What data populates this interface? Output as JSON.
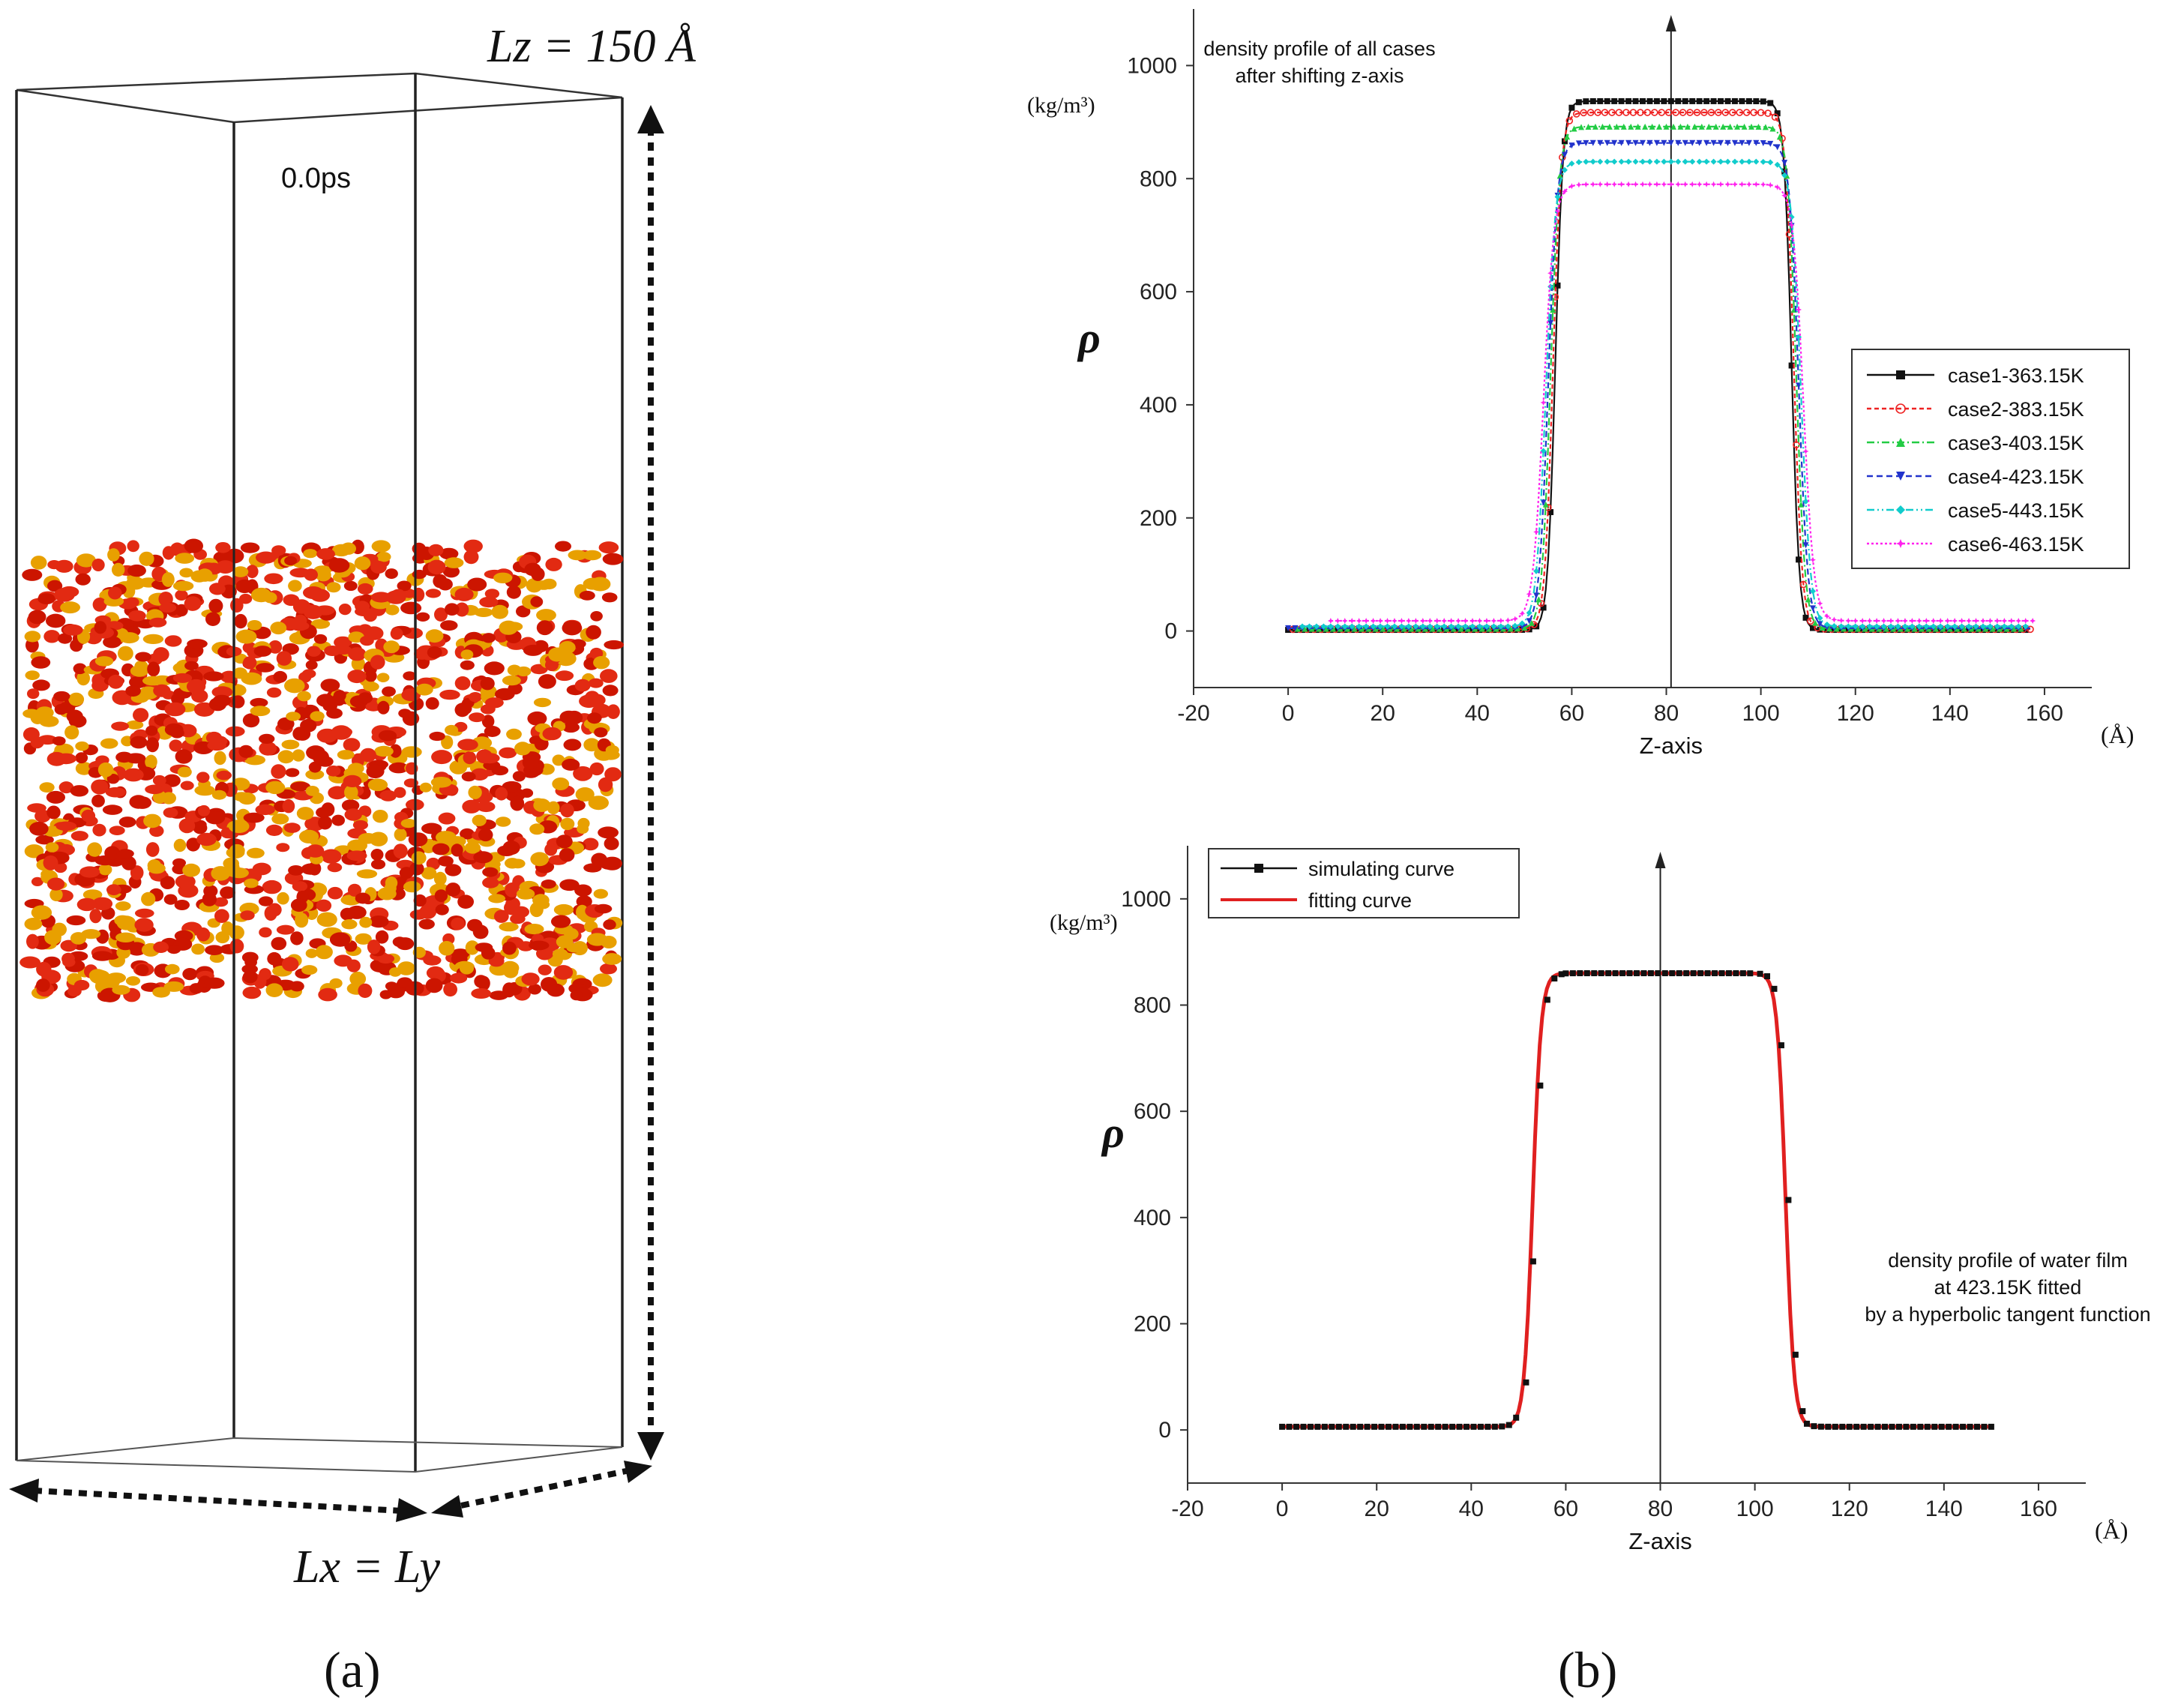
{
  "panel_a": {
    "lz_label": "Lz = 150 Å",
    "time_label": "0.0ps",
    "lx_label": "Lx = Ly",
    "caption": "(a)"
  },
  "panel_b": {
    "caption": "(b)"
  },
  "chart_data": [
    {
      "type": "line",
      "title": "density profile of all cases\nafter shifting z-axis",
      "xlabel": "Z-axis",
      "xunit": "(Å)",
      "ylabel": "ρ",
      "yunit": "(kg/m³)",
      "xlim": [
        -20,
        170
      ],
      "ylim": [
        -100,
        1100
      ],
      "xticks": [
        -20,
        0,
        20,
        40,
        60,
        80,
        100,
        120,
        140,
        160
      ],
      "yticks": [
        0,
        200,
        400,
        600,
        800,
        1000
      ],
      "vline_x": 81,
      "legend_position": "right",
      "grid": false,
      "series": [
        {
          "name": "case1-363.15K",
          "color": "#111111",
          "dash": "none",
          "marker": "square",
          "plateau": 937,
          "left_edge": 56.5,
          "right_edge": 106.5,
          "width": 1.6,
          "x_start": 0,
          "x_end": 156,
          "vapor": 2
        },
        {
          "name": "case2-383.15K",
          "color": "#ee2222",
          "dash": "6,4",
          "marker": "circle",
          "plateau": 917,
          "left_edge": 56,
          "right_edge": 107,
          "width": 1.7,
          "x_start": 1,
          "x_end": 157,
          "vapor": 3
        },
        {
          "name": "case3-403.15K",
          "color": "#22cc44",
          "dash": "10,4,2,4",
          "marker": "triangle-up",
          "plateau": 892,
          "left_edge": 55.5,
          "right_edge": 107.5,
          "width": 1.8,
          "x_start": 2,
          "x_end": 156,
          "vapor": 4
        },
        {
          "name": "case4-423.15K",
          "color": "#2233cc",
          "dash": "8,5",
          "marker": "triangle-down",
          "plateau": 863,
          "left_edge": 55,
          "right_edge": 108,
          "width": 1.9,
          "x_start": 0,
          "x_end": 157,
          "vapor": 5
        },
        {
          "name": "case5-443.15K",
          "color": "#11cccc",
          "dash": "10,4,2,4,2,4",
          "marker": "diamond",
          "plateau": 830,
          "left_edge": 54.5,
          "right_edge": 108.5,
          "width": 2.0,
          "x_start": 3,
          "x_end": 156,
          "vapor": 8
        },
        {
          "name": "case6-463.15K",
          "color": "#ff22ee",
          "dash": "3,3",
          "marker": "star",
          "plateau": 790,
          "left_edge": 54,
          "right_edge": 109,
          "width": 2.2,
          "x_start": 9,
          "x_end": 158,
          "vapor": 18
        }
      ]
    },
    {
      "type": "line",
      "title": "density profile of water film\nat 423.15K fitted\nby a hyperbolic tangent function",
      "xlabel": "Z-axis",
      "xunit": "(Å)",
      "ylabel": "ρ",
      "yunit": "(kg/m³)",
      "xlim": [
        -20,
        170
      ],
      "ylim": [
        -100,
        1100
      ],
      "xticks": [
        -20,
        0,
        20,
        40,
        60,
        80,
        100,
        120,
        140,
        160
      ],
      "yticks": [
        0,
        200,
        400,
        600,
        800,
        1000
      ],
      "vline_x": 80,
      "legend_position": "top-left",
      "grid": false,
      "series": [
        {
          "name": "simulating curve",
          "color": "#111111",
          "style": "markers",
          "plateau": 860,
          "left_edge": 53,
          "right_edge": 106.5,
          "width": 1.8,
          "x_start": 0,
          "x_end": 150,
          "vapor": 6
        },
        {
          "name": "fitting curve",
          "color": "#e02020",
          "style": "line",
          "plateau": 860,
          "left_edge": 53,
          "right_edge": 106.5,
          "width": 1.8,
          "x_start": 0,
          "x_end": 150,
          "vapor": 6
        }
      ]
    }
  ]
}
